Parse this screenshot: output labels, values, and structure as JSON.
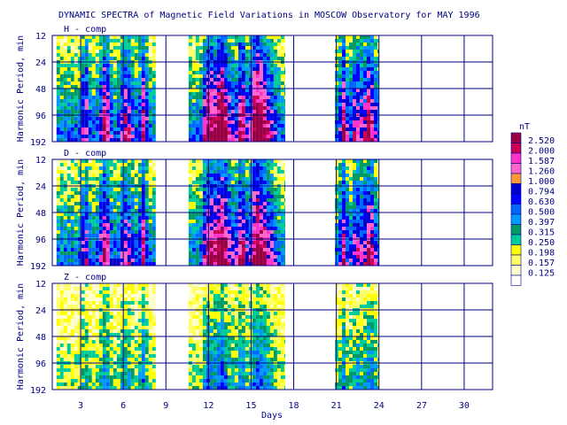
{
  "chart_data": {
    "type": "heatmap",
    "title": "DYNAMIC SPECTRA of Magnetic Field Variations in MOSCOW Observatory for MAY 1996",
    "xlabel": "Days",
    "ylabel": "Harmonic Period, min",
    "x_ticks": [
      "3",
      "6",
      "9",
      "12",
      "15",
      "18",
      "21",
      "24",
      "27",
      "30"
    ],
    "x_tick_values": [
      3,
      6,
      9,
      12,
      15,
      18,
      21,
      24,
      27,
      30
    ],
    "xlim": [
      1,
      32
    ],
    "y_ticks": [
      "12",
      "24",
      "48",
      "96",
      "192"
    ],
    "y_tick_values": [
      12,
      24,
      48,
      96,
      192
    ],
    "y_scale": "log",
    "grid": true,
    "data_coverage_days": [
      [
        1.3,
        8.3
      ],
      [
        10.6,
        17.4
      ],
      [
        20.9,
        24.0
      ]
    ],
    "panels": [
      {
        "label": "H - comp",
        "intensity": 1.0
      },
      {
        "label": "D - comp",
        "intensity": 0.95
      },
      {
        "label": "Z - comp",
        "intensity": 0.55
      }
    ],
    "colorbar": {
      "unit": "nT",
      "levels": [
        "2.520",
        "2.000",
        "1.587",
        "1.260",
        "1.000",
        "0.794",
        "0.630",
        "0.500",
        "0.397",
        "0.315",
        "0.250",
        "0.198",
        "0.157",
        "0.125",
        ""
      ],
      "colors": [
        "#990044",
        "#cc0055",
        "#ff33cc",
        "#ff66cc",
        "#ff9933",
        "#0000cc",
        "#0000ff",
        "#0066ff",
        "#0099ff",
        "#009966",
        "#00cc99",
        "#ffff00",
        "#ffff66",
        "#ffffcc",
        "#ffffff"
      ]
    }
  }
}
